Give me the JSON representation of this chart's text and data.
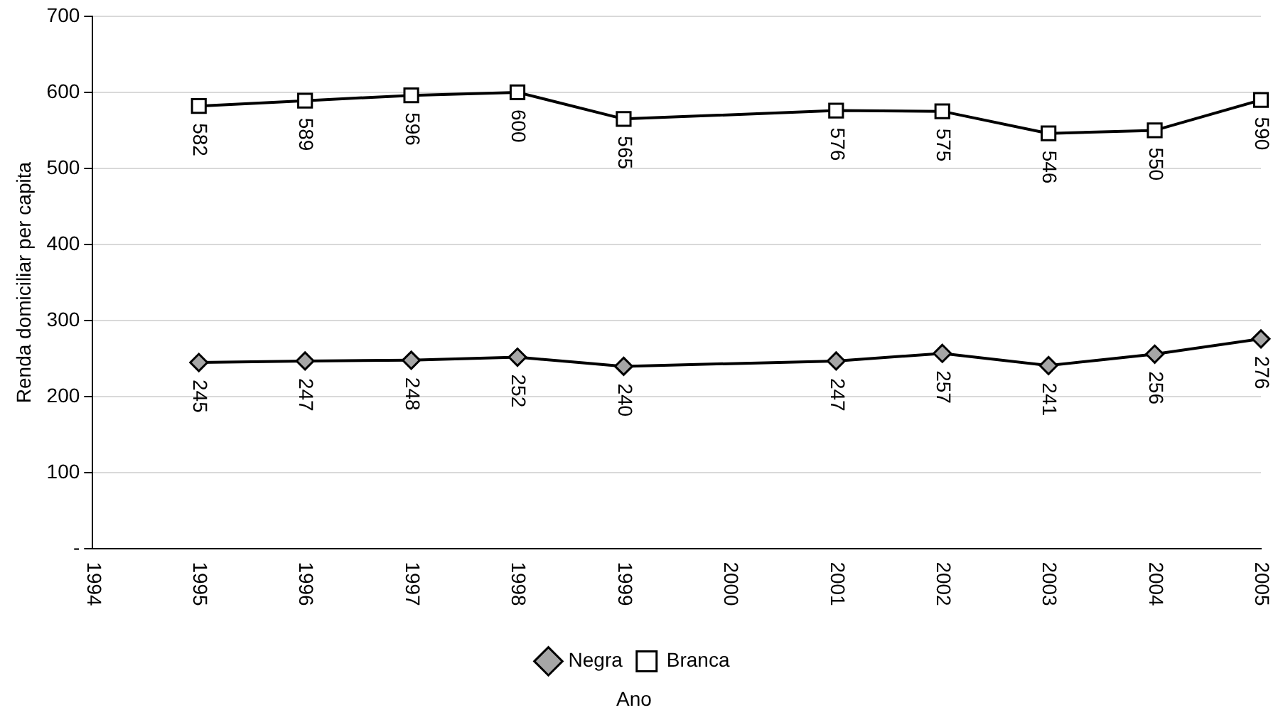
{
  "chart_data": {
    "type": "line",
    "xlabel": "Ano",
    "ylabel": "Renda domiciliar $_{}$per capita",
    "x": [
      1995,
      1996,
      1997,
      1998,
      1999,
      2001,
      2002,
      2003,
      2004,
      2005
    ],
    "series": [
      {
        "name": "Negra",
        "color": "#000000",
        "marker": "diamond",
        "values": [
          245,
          247,
          248,
          252,
          240,
          247,
          257,
          241,
          256,
          276
        ]
      },
      {
        "name": "Branca",
        "color": "#000000",
        "marker": "square",
        "values": [
          582,
          589,
          596,
          600,
          565,
          576,
          575,
          546,
          550,
          590
        ]
      }
    ],
    "xlim": [
      1994,
      2005
    ],
    "xticks": [
      1994,
      1995,
      1996,
      1997,
      1998,
      1999,
      2000,
      2001,
      2002,
      2003,
      2004,
      2005
    ],
    "ylim": [
      0,
      700
    ],
    "yticks": [
      {
        "value": 0,
        "label": "-"
      },
      100,
      200,
      300,
      400,
      500,
      600,
      700
    ],
    "grid": "y",
    "legend": "bottom",
    "data_labels": true
  }
}
